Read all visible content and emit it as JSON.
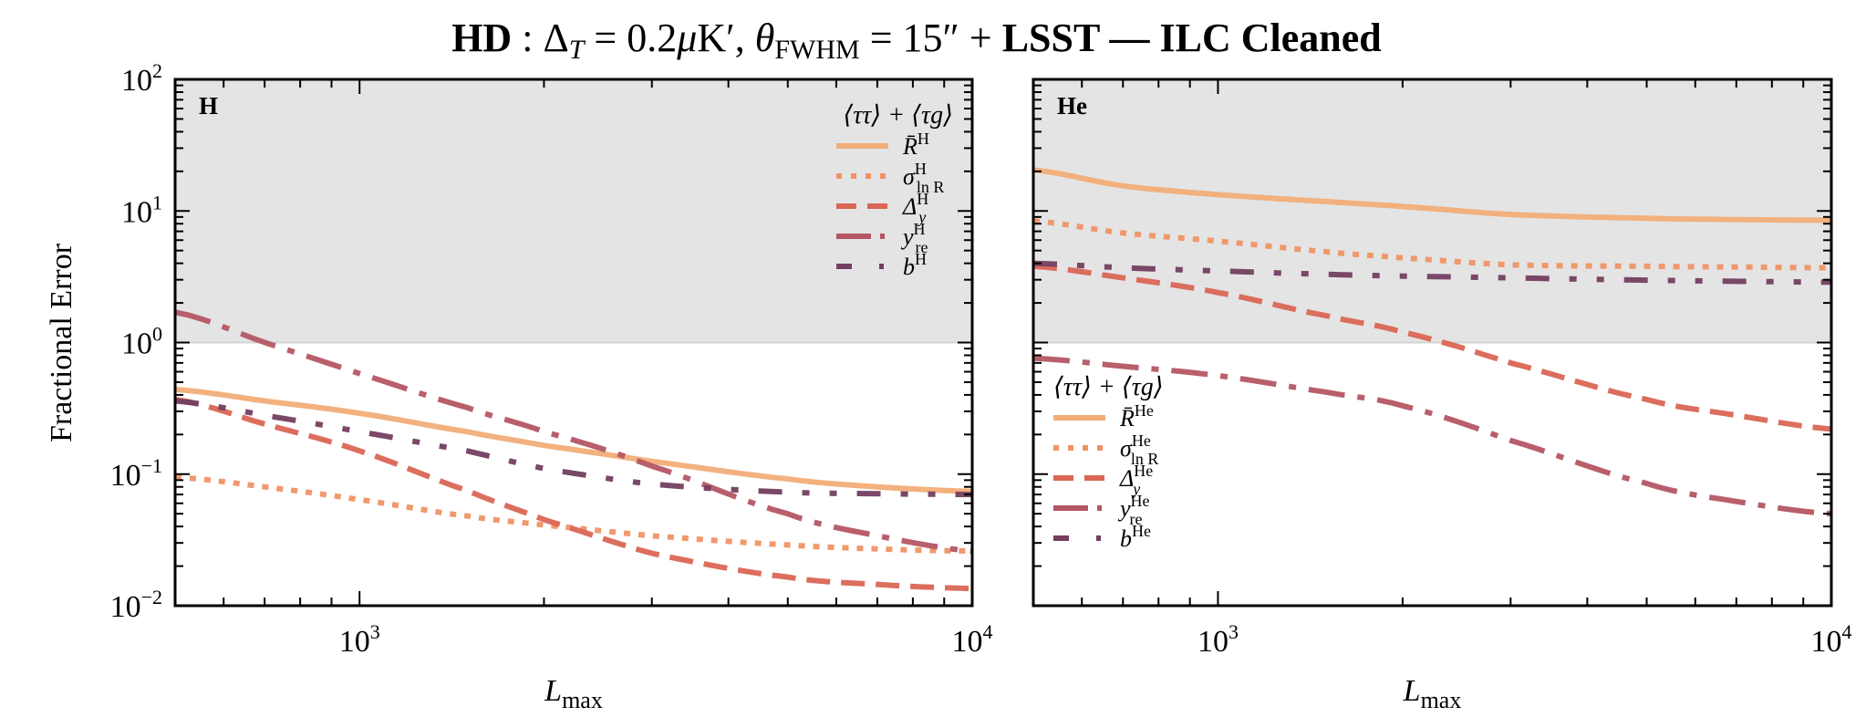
{
  "chart_data": [
    {
      "type": "line",
      "panel_label": "H",
      "title": "HD : Δ_T = 0.2μK′, θ_FWHM = 15″ + LSST — ILC Cleaned",
      "xlabel": "L_max",
      "ylabel": "Fractional Error",
      "xscale": "log",
      "yscale": "log",
      "xlim": [
        500,
        10000
      ],
      "ylim": [
        0.01,
        100
      ],
      "shaded_region": {
        "from": 1,
        "to": 100,
        "color": "#E4E4E4"
      },
      "x_tick_labels": [
        {
          "base": "10",
          "exp": "3",
          "value": 1000
        },
        {
          "base": "10",
          "exp": "4",
          "value": 10000
        }
      ],
      "y_tick_labels": [
        {
          "base": "10",
          "exp": "2",
          "value": 100
        },
        {
          "base": "10",
          "exp": "1",
          "value": 10
        },
        {
          "base": "10",
          "exp": "0",
          "value": 1
        },
        {
          "base": "10",
          "exp": "−1",
          "value": 0.1
        },
        {
          "base": "10",
          "exp": "−2",
          "value": 0.01
        }
      ],
      "legend": {
        "title": "⟨ττ⟩ + ⟨τg⟩",
        "placement": "top-right"
      },
      "x": [
        500,
        700,
        1000,
        1500,
        2000,
        3000,
        5000,
        7000,
        10000
      ],
      "series": [
        {
          "name": "R̄^H",
          "label_main": "R̄",
          "label_sup": "H",
          "label_sub": "",
          "style": "solid",
          "color": "#F1AD77",
          "values": [
            0.44,
            0.36,
            0.29,
            0.21,
            0.165,
            0.125,
            0.092,
            0.08,
            0.074
          ]
        },
        {
          "name": "σ^H_lnR",
          "label_main": "σ",
          "label_sup": "H",
          "label_sub": "ln R",
          "style": "dotted",
          "color": "#EF9365",
          "values": [
            0.095,
            0.08,
            0.064,
            0.048,
            0.041,
            0.034,
            0.029,
            0.027,
            0.026
          ]
        },
        {
          "name": "Δ^H_y",
          "label_main": "Δ",
          "label_sup": "H",
          "label_sub": "y",
          "style": "dashed",
          "color": "#DA6655",
          "values": [
            0.37,
            0.24,
            0.15,
            0.075,
            0.045,
            0.025,
            0.0165,
            0.0145,
            0.0135
          ]
        },
        {
          "name": "y^H_re",
          "label_main": "y",
          "label_sup": "H",
          "label_sub": "re",
          "style": "dashdot",
          "color": "#B55664",
          "values": [
            1.7,
            1.0,
            0.58,
            0.32,
            0.21,
            0.115,
            0.05,
            0.034,
            0.026
          ]
        },
        {
          "name": "b^H",
          "label_main": "b",
          "label_sup": "H",
          "label_sub": "",
          "style": "dashdotdot",
          "color": "#733E60",
          "values": [
            0.36,
            0.28,
            0.21,
            0.15,
            0.11,
            0.084,
            0.073,
            0.071,
            0.07
          ]
        }
      ]
    },
    {
      "type": "line",
      "panel_label": "He",
      "xlabel": "L_max",
      "ylabel": "",
      "xscale": "log",
      "yscale": "log",
      "xlim": [
        500,
        10000
      ],
      "ylim": [
        0.01,
        100
      ],
      "shaded_region": {
        "from": 1,
        "to": 100,
        "color": "#E4E4E4"
      },
      "x_tick_labels": [
        {
          "base": "10",
          "exp": "3",
          "value": 1000
        },
        {
          "base": "10",
          "exp": "4",
          "value": 10000
        }
      ],
      "legend": {
        "title": "⟨ττ⟩ + ⟨τg⟩",
        "placement": "center-left"
      },
      "x": [
        500,
        700,
        1000,
        1500,
        2000,
        3000,
        5000,
        7000,
        10000
      ],
      "series": [
        {
          "name": "R̄^He",
          "label_main": "R̄",
          "label_sup": "He",
          "label_sub": "",
          "style": "solid",
          "color": "#F1AD77",
          "values": [
            20.5,
            15.5,
            13.3,
            11.8,
            10.8,
            9.4,
            8.8,
            8.6,
            8.5
          ]
        },
        {
          "name": "σ^He_lnR",
          "label_main": "σ",
          "label_sup": "He",
          "label_sub": "ln R",
          "style": "dotted",
          "color": "#EF9365",
          "values": [
            8.4,
            6.8,
            5.9,
            4.9,
            4.4,
            3.9,
            3.8,
            3.75,
            3.7
          ]
        },
        {
          "name": "Δ^He_y",
          "label_main": "Δ",
          "label_sup": "He",
          "label_sub": "y",
          "style": "dashed",
          "color": "#DA6655",
          "values": [
            3.8,
            3.1,
            2.4,
            1.6,
            1.2,
            0.7,
            0.37,
            0.28,
            0.22
          ]
        },
        {
          "name": "y^He_re",
          "label_main": "y",
          "label_sup": "He",
          "label_sub": "re",
          "style": "dashdot",
          "color": "#B55664",
          "values": [
            0.76,
            0.66,
            0.56,
            0.42,
            0.33,
            0.18,
            0.085,
            0.062,
            0.05
          ]
        },
        {
          "name": "b^He",
          "label_main": "b",
          "label_sup": "He",
          "label_sub": "",
          "style": "dashdotdot",
          "color": "#733E60",
          "values": [
            4.0,
            3.7,
            3.5,
            3.3,
            3.2,
            3.1,
            2.98,
            2.92,
            2.88
          ]
        }
      ]
    }
  ],
  "figure": {
    "title_parts": {
      "hd": "HD",
      "colon": " :  ",
      "delta": "Δ",
      "delta_sub": "T",
      "eq1": " = 0.2",
      "mu": "μ",
      "unit": "K′,  ",
      "theta": "θ",
      "theta_sub": "FWHM",
      "eq2": " = 15″ + ",
      "lsst": "LSST",
      "dash": " —  ",
      "ilc": "ILC Cleaned"
    },
    "ylabel": "Fractional Error",
    "xlabel_main": "L",
    "xlabel_sub": "max"
  }
}
